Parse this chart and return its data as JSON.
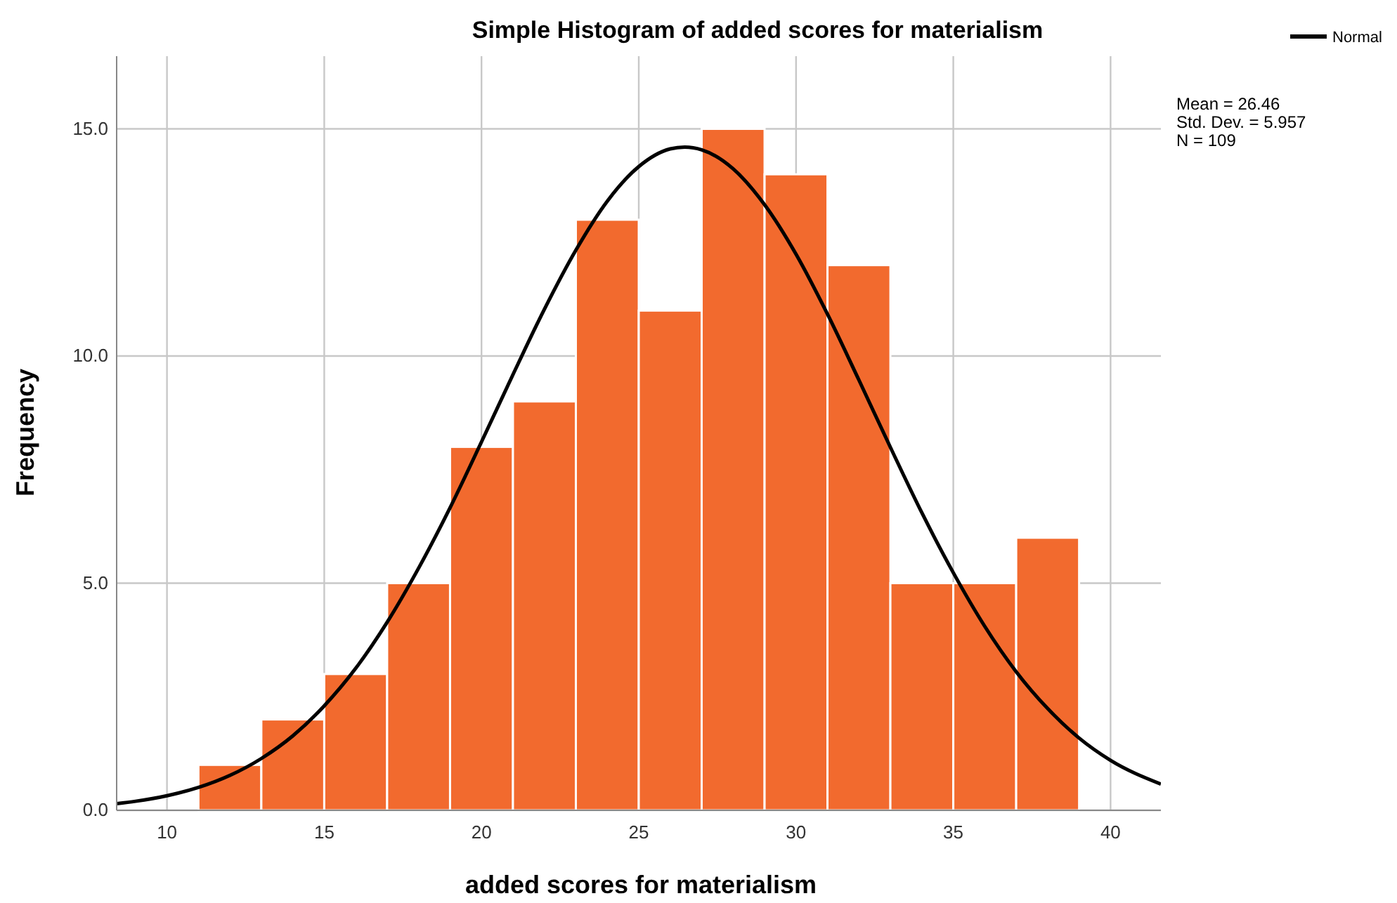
{
  "chart_data": {
    "type": "histogram",
    "title": "Simple Histogram of added scores for materialism",
    "xlabel": "added scores for materialism",
    "ylabel": "Frequency",
    "bins": [
      11,
      13,
      15,
      17,
      19,
      21,
      23,
      25,
      27,
      29,
      31,
      33,
      35,
      37,
      39
    ],
    "values": [
      1,
      2,
      3,
      5,
      8,
      9,
      13,
      11,
      15,
      14,
      12,
      5,
      5,
      6
    ],
    "color": "#f26a2e",
    "series": [
      {
        "type": "line",
        "name": "Normal",
        "color": "#000000",
        "x": [
          8.4,
          9,
          10,
          11,
          12,
          13,
          14,
          15,
          16,
          17,
          18,
          19,
          20,
          21,
          22,
          23,
          24,
          25,
          26,
          26.46,
          27,
          28,
          29,
          30,
          31,
          32,
          33,
          34,
          35,
          36,
          37,
          38,
          39,
          40,
          41.6
        ],
        "values": [
          0.147,
          0.199,
          0.321,
          0.503,
          0.768,
          1.14,
          1.638,
          2.3,
          3.125,
          4.14,
          5.33,
          6.66,
          8.11,
          9.59,
          11.03,
          12.33,
          13.41,
          14.17,
          14.56,
          14.6,
          14.54,
          14.12,
          13.33,
          12.24,
          10.92,
          9.47,
          7.99,
          6.55,
          5.23,
          4.05,
          3.05,
          2.24,
          1.59,
          1.1,
          0.578
        ]
      }
    ],
    "xlim": [
      8.4,
      41.6
    ],
    "xticks": [
      10,
      15,
      20,
      25,
      30,
      35,
      40
    ],
    "ylim": [
      0,
      16.6
    ],
    "yticks": [
      {
        "value": 0,
        "label": "0.0"
      },
      {
        "value": 5,
        "label": "5.0"
      },
      {
        "value": 10,
        "label": "10.0"
      },
      {
        "value": 15,
        "label": "15.0"
      }
    ],
    "grid": true,
    "legend": "top right",
    "marker": "none",
    "line_style": "solid",
    "annotations": [
      "Mean = 26.46",
      "Std. Dev. = 5.957",
      "N = 109"
    ]
  }
}
